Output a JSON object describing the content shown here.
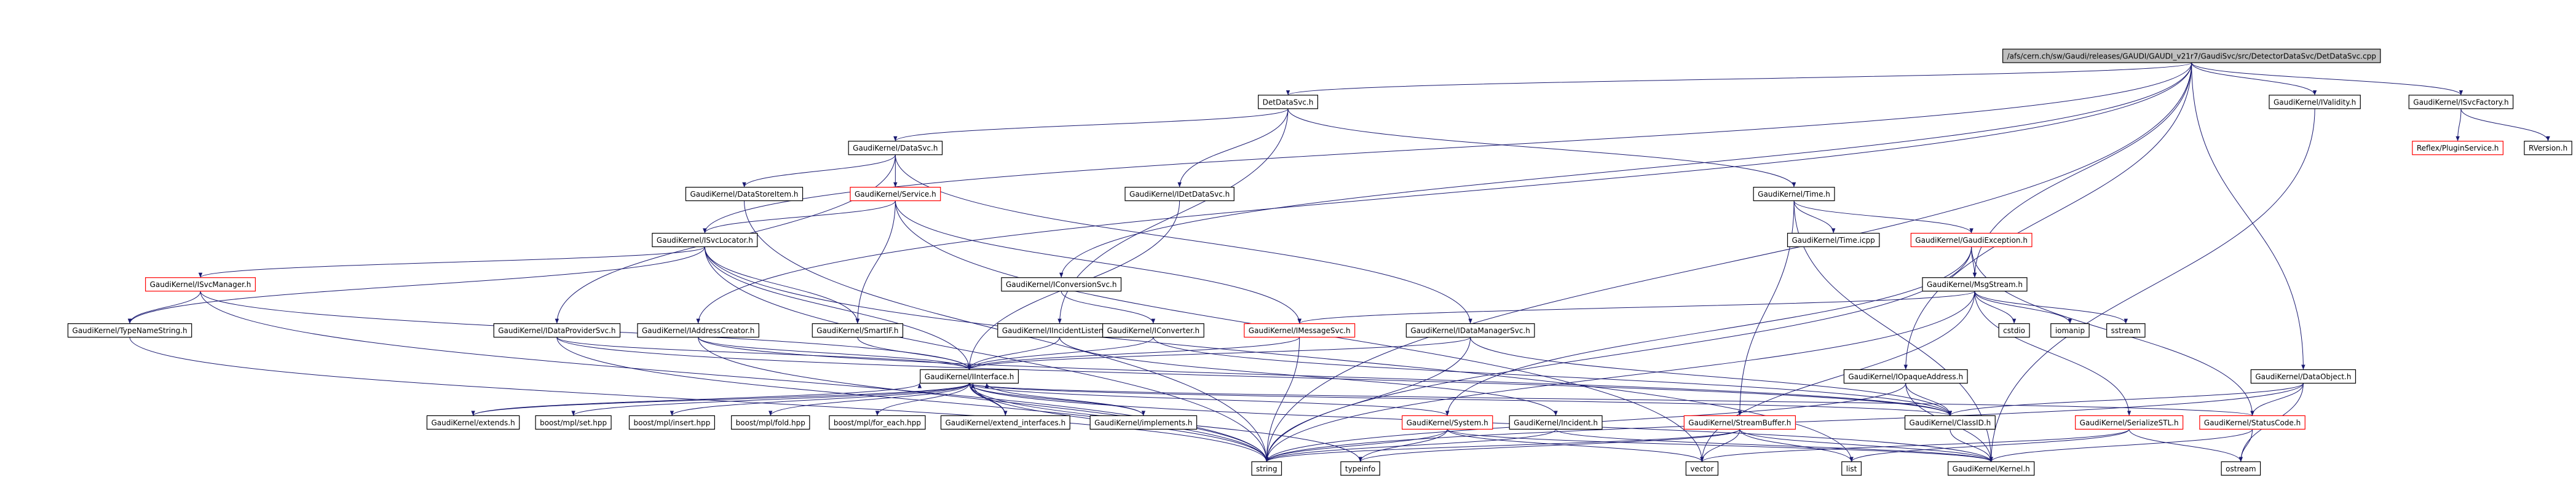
{
  "graph": {
    "nodes": [
      {
        "label": "/afs/cern.ch/sw/Gaudi/releases/GAUDI/GAUDI_v21r7/GaudiSvc/src/DetectorDataSvc/DetDataSvc.cpp"
      },
      {
        "label": "DetDataSvc.h"
      },
      {
        "label": "GaudiKernel/IValidity.h"
      },
      {
        "label": "GaudiKernel/ISvcFactory.h"
      },
      {
        "label": "Reflex/PluginService.h"
      },
      {
        "label": "RVersion.h"
      },
      {
        "label": "GaudiKernel/DataSvc.h"
      },
      {
        "label": "GaudiKernel/DataStoreItem.h"
      },
      {
        "label": "GaudiKernel/Service.h"
      },
      {
        "label": "GaudiKernel/IDetDataSvc.h"
      },
      {
        "label": "GaudiKernel/Time.h"
      },
      {
        "label": "GaudiKernel/ISvcLocator.h"
      },
      {
        "label": "GaudiKernel/Time.icpp"
      },
      {
        "label": "GaudiKernel/GaudiException.h"
      },
      {
        "label": "GaudiKernel/ISvcManager.h"
      },
      {
        "label": "GaudiKernel/IConversionSvc.h"
      },
      {
        "label": "GaudiKernel/MsgStream.h"
      },
      {
        "label": "GaudiKernel/TypeNameString.h"
      },
      {
        "label": "GaudiKernel/IDataProviderSvc.h"
      },
      {
        "label": "GaudiKernel/IAddressCreator.h"
      },
      {
        "label": "GaudiKernel/SmartIF.h"
      },
      {
        "label": "GaudiKernel/IIncidentListener.h"
      },
      {
        "label": "GaudiKernel/IConverter.h"
      },
      {
        "label": "GaudiKernel/IMessageSvc.h"
      },
      {
        "label": "GaudiKernel/IDataManagerSvc.h"
      },
      {
        "label": "cstdio"
      },
      {
        "label": "iomanip"
      },
      {
        "label": "sstream"
      },
      {
        "label": "GaudiKernel/IOpaqueAddress.h"
      },
      {
        "label": "GaudiKernel/DataObject.h"
      },
      {
        "label": "GaudiKernel/IInterface.h"
      },
      {
        "label": "GaudiKernel/extends.h"
      },
      {
        "label": "boost/mpl/set.hpp"
      },
      {
        "label": "boost/mpl/insert.hpp"
      },
      {
        "label": "boost/mpl/fold.hpp"
      },
      {
        "label": "boost/mpl/for_each.hpp"
      },
      {
        "label": "GaudiKernel/extend_interfaces.h"
      },
      {
        "label": "GaudiKernel/implements.h"
      },
      {
        "label": "GaudiKernel/System.h"
      },
      {
        "label": "GaudiKernel/Incident.h"
      },
      {
        "label": "GaudiKernel/StreamBuffer.h"
      },
      {
        "label": "GaudiKernel/ClassID.h"
      },
      {
        "label": "GaudiKernel/SerializeSTL.h"
      },
      {
        "label": "GaudiKernel/StatusCode.h"
      },
      {
        "label": "string"
      },
      {
        "label": "typeinfo"
      },
      {
        "label": "vector"
      },
      {
        "label": "list"
      },
      {
        "label": "GaudiKernel/Kernel.h"
      },
      {
        "label": "ostream"
      }
    ]
  }
}
